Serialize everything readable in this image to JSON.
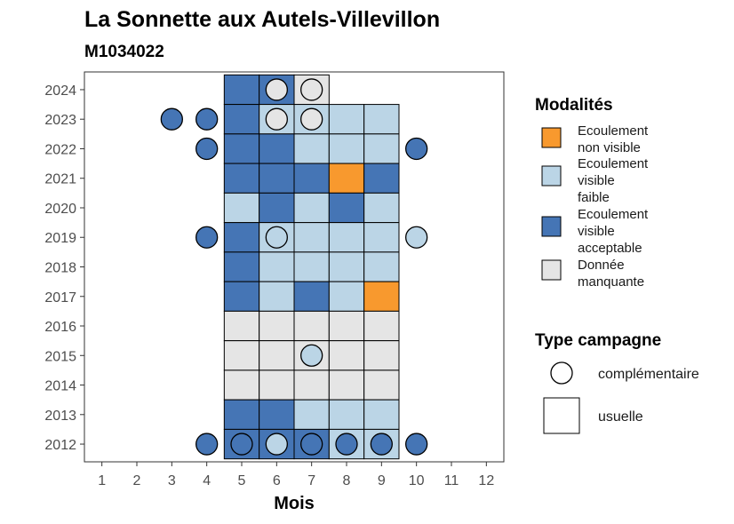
{
  "chart_data": {
    "type": "heatmap",
    "title": "La Sonnette aux Autels-Villevillon",
    "subtitle": "M1034022",
    "xlabel": "Mois",
    "ylabel": "",
    "x_ticks": [
      "1",
      "2",
      "3",
      "4",
      "5",
      "6",
      "7",
      "8",
      "9",
      "10",
      "11",
      "12"
    ],
    "y_ticks": [
      "2012",
      "2013",
      "2014",
      "2015",
      "2016",
      "2017",
      "2018",
      "2019",
      "2020",
      "2021",
      "2022",
      "2023",
      "2024"
    ],
    "xlim": [
      0.5,
      12.5
    ],
    "ylim": [
      2011.4,
      2024.6
    ],
    "grid": false,
    "legend_position": "right",
    "legend": {
      "modalites_title": "Modalités",
      "modalites": [
        {
          "key": "NV",
          "lines": [
            "Ecoulement",
            "non visible"
          ],
          "color": "#F8992E"
        },
        {
          "key": "VF",
          "lines": [
            "Ecoulement",
            "visible",
            "faible"
          ],
          "color": "#BBD5E6"
        },
        {
          "key": "VA",
          "lines": [
            "Ecoulement",
            "visible",
            "acceptable"
          ],
          "color": "#4575B5"
        },
        {
          "key": "NA",
          "lines": [
            "Donnée",
            "manquante"
          ],
          "color": "#E5E5E5"
        }
      ],
      "campagne_title": "Type campagne",
      "campagne": [
        {
          "shape": "circle",
          "label": "complémentaire"
        },
        {
          "shape": "square",
          "label": "usuelle"
        }
      ]
    },
    "tiles": [
      {
        "year": 2024,
        "month": 5,
        "cat": "VA"
      },
      {
        "year": 2024,
        "month": 6,
        "cat": "VA"
      },
      {
        "year": 2024,
        "month": 7,
        "cat": "NA"
      },
      {
        "year": 2023,
        "month": 5,
        "cat": "VA"
      },
      {
        "year": 2023,
        "month": 6,
        "cat": "VF"
      },
      {
        "year": 2023,
        "month": 7,
        "cat": "VF"
      },
      {
        "year": 2023,
        "month": 8,
        "cat": "VF"
      },
      {
        "year": 2023,
        "month": 9,
        "cat": "VF"
      },
      {
        "year": 2022,
        "month": 5,
        "cat": "VA"
      },
      {
        "year": 2022,
        "month": 6,
        "cat": "VA"
      },
      {
        "year": 2022,
        "month": 7,
        "cat": "VF"
      },
      {
        "year": 2022,
        "month": 8,
        "cat": "VF"
      },
      {
        "year": 2022,
        "month": 9,
        "cat": "VF"
      },
      {
        "year": 2021,
        "month": 5,
        "cat": "VA"
      },
      {
        "year": 2021,
        "month": 6,
        "cat": "VA"
      },
      {
        "year": 2021,
        "month": 7,
        "cat": "VA"
      },
      {
        "year": 2021,
        "month": 8,
        "cat": "NV"
      },
      {
        "year": 2021,
        "month": 9,
        "cat": "VA"
      },
      {
        "year": 2020,
        "month": 5,
        "cat": "VF"
      },
      {
        "year": 2020,
        "month": 6,
        "cat": "VA"
      },
      {
        "year": 2020,
        "month": 7,
        "cat": "VF"
      },
      {
        "year": 2020,
        "month": 8,
        "cat": "VA"
      },
      {
        "year": 2020,
        "month": 9,
        "cat": "VF"
      },
      {
        "year": 2019,
        "month": 5,
        "cat": "VA"
      },
      {
        "year": 2019,
        "month": 6,
        "cat": "VF"
      },
      {
        "year": 2019,
        "month": 7,
        "cat": "VF"
      },
      {
        "year": 2019,
        "month": 8,
        "cat": "VF"
      },
      {
        "year": 2019,
        "month": 9,
        "cat": "VF"
      },
      {
        "year": 2018,
        "month": 5,
        "cat": "VA"
      },
      {
        "year": 2018,
        "month": 6,
        "cat": "VF"
      },
      {
        "year": 2018,
        "month": 7,
        "cat": "VF"
      },
      {
        "year": 2018,
        "month": 8,
        "cat": "VF"
      },
      {
        "year": 2018,
        "month": 9,
        "cat": "VF"
      },
      {
        "year": 2017,
        "month": 5,
        "cat": "VA"
      },
      {
        "year": 2017,
        "month": 6,
        "cat": "VF"
      },
      {
        "year": 2017,
        "month": 7,
        "cat": "VA"
      },
      {
        "year": 2017,
        "month": 8,
        "cat": "VF"
      },
      {
        "year": 2017,
        "month": 9,
        "cat": "NV"
      },
      {
        "year": 2016,
        "month": 5,
        "cat": "NA"
      },
      {
        "year": 2016,
        "month": 6,
        "cat": "NA"
      },
      {
        "year": 2016,
        "month": 7,
        "cat": "NA"
      },
      {
        "year": 2016,
        "month": 8,
        "cat": "NA"
      },
      {
        "year": 2016,
        "month": 9,
        "cat": "NA"
      },
      {
        "year": 2015,
        "month": 5,
        "cat": "NA"
      },
      {
        "year": 2015,
        "month": 6,
        "cat": "NA"
      },
      {
        "year": 2015,
        "month": 7,
        "cat": "NA"
      },
      {
        "year": 2015,
        "month": 8,
        "cat": "NA"
      },
      {
        "year": 2015,
        "month": 9,
        "cat": "NA"
      },
      {
        "year": 2014,
        "month": 5,
        "cat": "NA"
      },
      {
        "year": 2014,
        "month": 6,
        "cat": "NA"
      },
      {
        "year": 2014,
        "month": 7,
        "cat": "NA"
      },
      {
        "year": 2014,
        "month": 8,
        "cat": "NA"
      },
      {
        "year": 2014,
        "month": 9,
        "cat": "NA"
      },
      {
        "year": 2013,
        "month": 5,
        "cat": "VA"
      },
      {
        "year": 2013,
        "month": 6,
        "cat": "VA"
      },
      {
        "year": 2013,
        "month": 7,
        "cat": "VF"
      },
      {
        "year": 2013,
        "month": 8,
        "cat": "VF"
      },
      {
        "year": 2013,
        "month": 9,
        "cat": "VF"
      },
      {
        "year": 2012,
        "month": 5,
        "cat": "VA"
      },
      {
        "year": 2012,
        "month": 6,
        "cat": "VA"
      },
      {
        "year": 2012,
        "month": 7,
        "cat": "VA"
      },
      {
        "year": 2012,
        "month": 8,
        "cat": "VF"
      },
      {
        "year": 2012,
        "month": 9,
        "cat": "VF"
      }
    ],
    "points": [
      {
        "year": 2024,
        "month": 6,
        "cat": "NA"
      },
      {
        "year": 2024,
        "month": 7,
        "cat": "NA"
      },
      {
        "year": 2023,
        "month": 3,
        "cat": "VA"
      },
      {
        "year": 2023,
        "month": 4,
        "cat": "VA"
      },
      {
        "year": 2023,
        "month": 6,
        "cat": "NA"
      },
      {
        "year": 2023,
        "month": 7,
        "cat": "NA"
      },
      {
        "year": 2022,
        "month": 4,
        "cat": "VA"
      },
      {
        "year": 2022,
        "month": 10,
        "cat": "VA"
      },
      {
        "year": 2019,
        "month": 4,
        "cat": "VA"
      },
      {
        "year": 2019,
        "month": 6,
        "cat": "VF"
      },
      {
        "year": 2019,
        "month": 10,
        "cat": "VF"
      },
      {
        "year": 2015,
        "month": 7,
        "cat": "VF"
      },
      {
        "year": 2012,
        "month": 4,
        "cat": "VA"
      },
      {
        "year": 2012,
        "month": 5,
        "cat": "VA"
      },
      {
        "year": 2012,
        "month": 6,
        "cat": "VF"
      },
      {
        "year": 2012,
        "month": 7,
        "cat": "VA"
      },
      {
        "year": 2012,
        "month": 8,
        "cat": "VA"
      },
      {
        "year": 2012,
        "month": 9,
        "cat": "VA"
      },
      {
        "year": 2012,
        "month": 10,
        "cat": "VA"
      }
    ]
  }
}
